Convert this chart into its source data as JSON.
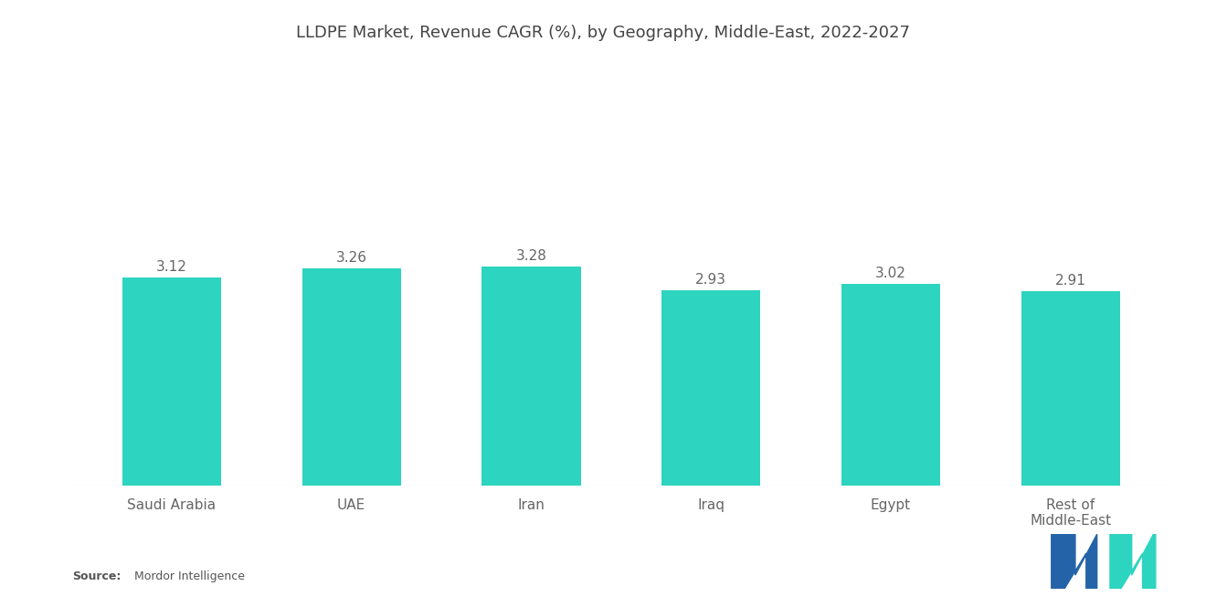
{
  "title": "LLDPE Market, Revenue CAGR (%), by Geography, Middle-East, 2022-2027",
  "categories": [
    "Saudi Arabia",
    "UAE",
    "Iran",
    "Iraq",
    "Egypt",
    "Rest of\nMiddle-East"
  ],
  "values": [
    3.12,
    3.26,
    3.28,
    2.93,
    3.02,
    2.91
  ],
  "bar_color": "#2DD4BF",
  "background_color": "#ffffff",
  "title_fontsize": 13,
  "label_fontsize": 11,
  "value_fontsize": 11,
  "source_bold": "Source:",
  "source_normal": "  Mordor Intelligence",
  "ylim": [
    0,
    6.0
  ],
  "bar_width": 0.55,
  "logo_left_color": "#2563A8",
  "logo_right_color": "#2DD4BF"
}
